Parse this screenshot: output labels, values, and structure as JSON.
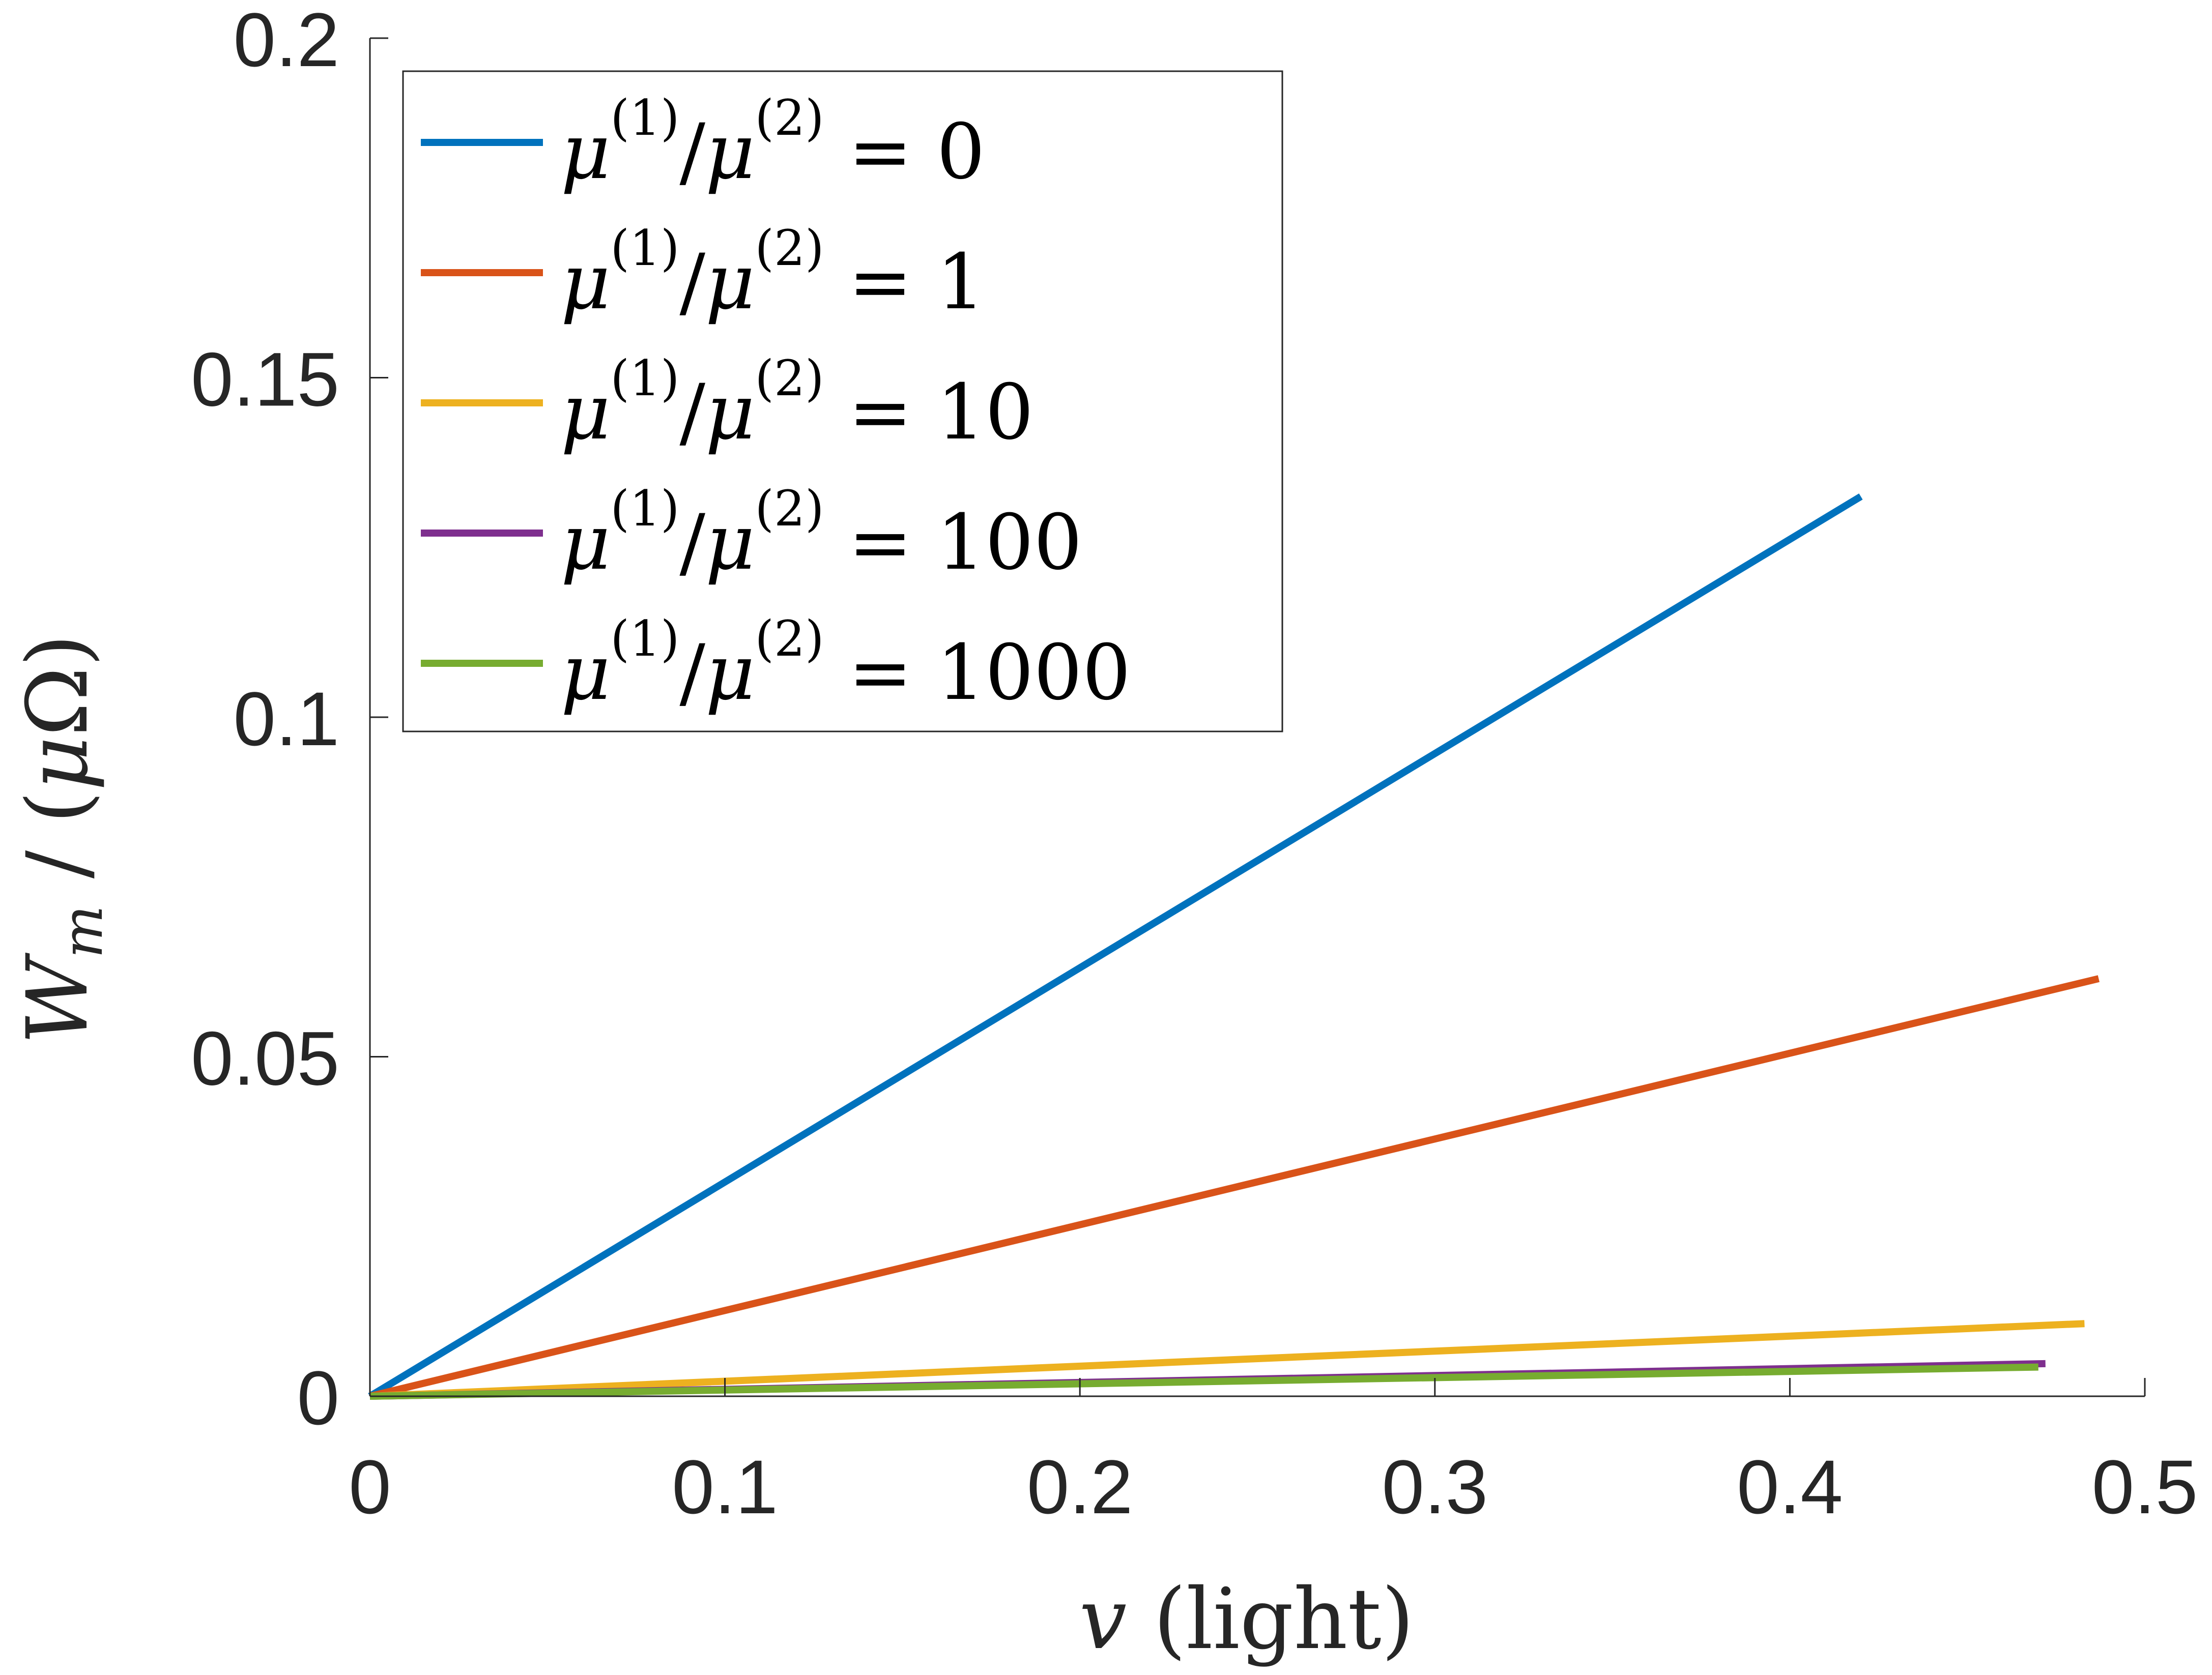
{
  "chart_data": {
    "type": "line",
    "xlabel": "v (light)",
    "ylabel": "W_m / (μΩ)",
    "xlim": [
      0,
      0.5
    ],
    "ylim": [
      0,
      0.2
    ],
    "xticks": [
      "0",
      "0.1",
      "0.2",
      "0.3",
      "0.4",
      "0.5"
    ],
    "yticks": [
      "0",
      "0.05",
      "0.1",
      "0.15",
      "0.2"
    ],
    "grid": false,
    "legend_position": "top-left",
    "series": [
      {
        "name": "μ(1)/μ(2) = 0",
        "ratio": "0",
        "color": "#0072BD",
        "x": [
          0,
          0.42
        ],
        "y": [
          0,
          0.1325
        ]
      },
      {
        "name": "μ(1)/μ(2) = 1",
        "ratio": "1",
        "color": "#D95319",
        "x": [
          0,
          0.487
        ],
        "y": [
          0,
          0.0615
        ]
      },
      {
        "name": "μ(1)/μ(2) = 10",
        "ratio": "10",
        "color": "#EDB120",
        "x": [
          0,
          0.483
        ],
        "y": [
          0,
          0.0107
        ]
      },
      {
        "name": "μ(1)/μ(2) = 100",
        "ratio": "100",
        "color": "#7E2F8E",
        "x": [
          0,
          0.472
        ],
        "y": [
          0,
          0.0048
        ]
      },
      {
        "name": "μ(1)/μ(2) = 1000",
        "ratio": "1000",
        "color": "#77AC30",
        "x": [
          0,
          0.47
        ],
        "y": [
          0,
          0.0043
        ]
      }
    ]
  }
}
